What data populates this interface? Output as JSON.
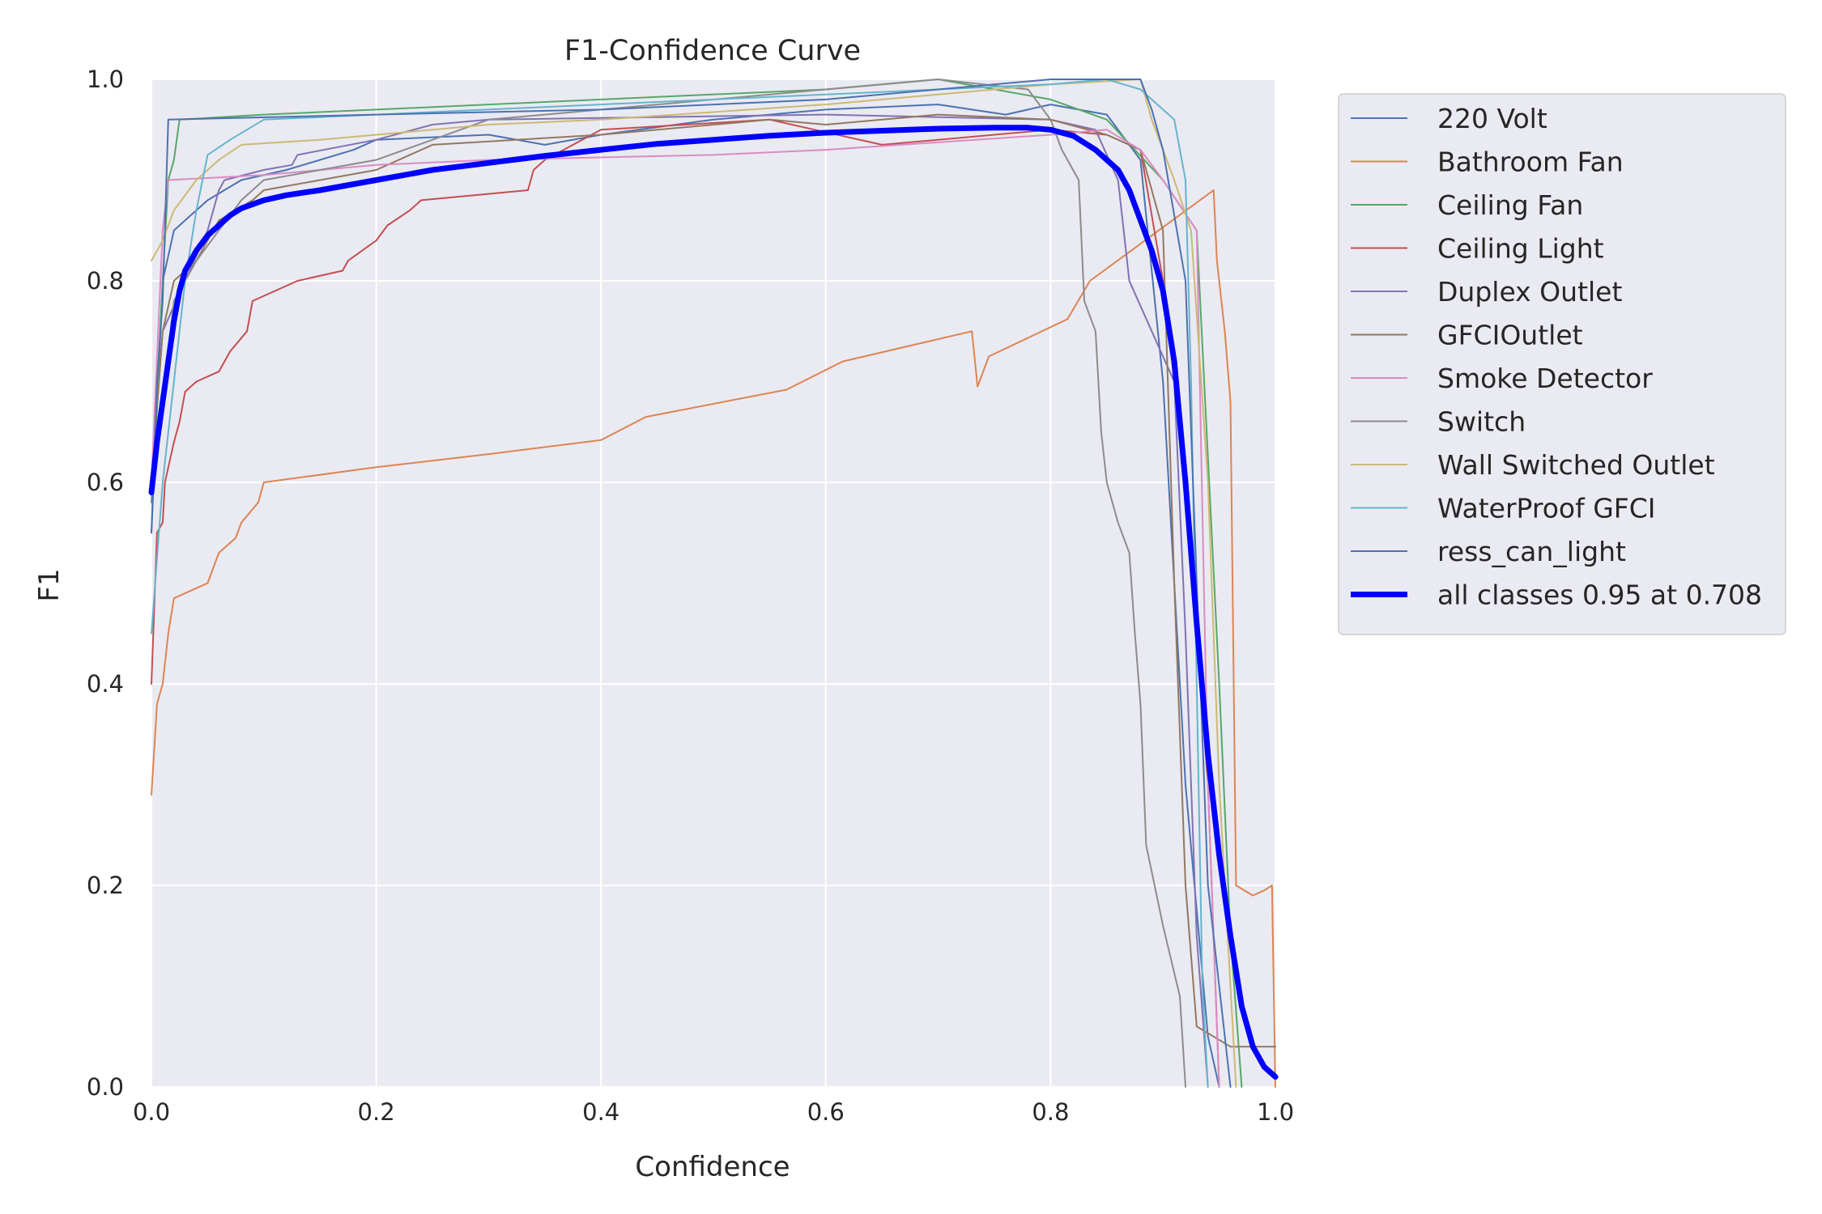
{
  "chart_data": {
    "type": "line",
    "title": "F1-Confidence Curve",
    "xlabel": "Confidence",
    "ylabel": "F1",
    "xlim": [
      0,
      1
    ],
    "ylim": [
      0,
      1
    ],
    "xticks": [
      "0.0",
      "0.2",
      "0.4",
      "0.6",
      "0.8",
      "1.0"
    ],
    "yticks": [
      "0.0",
      "0.2",
      "0.4",
      "0.6",
      "0.8",
      "1.0"
    ],
    "grid": true,
    "legend_position": "outside right, top",
    "series": [
      {
        "name": "220 Volt",
        "color": "#4c72b0",
        "width": 2,
        "points": [
          [
            0,
            0.55
          ],
          [
            0.01,
            0.8
          ],
          [
            0.02,
            0.85
          ],
          [
            0.03,
            0.86
          ],
          [
            0.05,
            0.88
          ],
          [
            0.08,
            0.9
          ],
          [
            0.12,
            0.91
          ],
          [
            0.18,
            0.93
          ],
          [
            0.2,
            0.94
          ],
          [
            0.3,
            0.945
          ],
          [
            0.35,
            0.935
          ],
          [
            0.4,
            0.945
          ],
          [
            0.5,
            0.96
          ],
          [
            0.6,
            0.97
          ],
          [
            0.7,
            0.975
          ],
          [
            0.76,
            0.965
          ],
          [
            0.8,
            0.975
          ],
          [
            0.85,
            0.965
          ],
          [
            0.88,
            0.92
          ],
          [
            0.9,
            0.7
          ],
          [
            0.92,
            0.3
          ],
          [
            0.94,
            0.05
          ],
          [
            0.95,
            0
          ]
        ]
      },
      {
        "name": "Bathroom Fan",
        "color": "#dd8452",
        "width": 2,
        "points": [
          [
            0,
            0.29
          ],
          [
            0.005,
            0.38
          ],
          [
            0.01,
            0.4
          ],
          [
            0.015,
            0.45
          ],
          [
            0.02,
            0.485
          ],
          [
            0.05,
            0.5
          ],
          [
            0.06,
            0.53
          ],
          [
            0.075,
            0.545
          ],
          [
            0.08,
            0.56
          ],
          [
            0.095,
            0.58
          ],
          [
            0.1,
            0.6
          ],
          [
            0.2,
            0.615
          ],
          [
            0.3,
            0.628
          ],
          [
            0.4,
            0.642
          ],
          [
            0.44,
            0.665
          ],
          [
            0.565,
            0.692
          ],
          [
            0.615,
            0.72
          ],
          [
            0.73,
            0.75
          ],
          [
            0.735,
            0.695
          ],
          [
            0.745,
            0.725
          ],
          [
            0.815,
            0.762
          ],
          [
            0.835,
            0.8
          ],
          [
            0.945,
            0.89
          ],
          [
            0.948,
            0.82
          ],
          [
            0.955,
            0.75
          ],
          [
            0.96,
            0.68
          ],
          [
            0.965,
            0.2
          ],
          [
            0.98,
            0.19
          ],
          [
            0.99,
            0.195
          ],
          [
            0.997,
            0.2
          ],
          [
            1.0,
            0
          ]
        ]
      },
      {
        "name": "Ceiling Fan",
        "color": "#55a868",
        "width": 2,
        "points": [
          [
            0,
            0.58
          ],
          [
            0.01,
            0.8
          ],
          [
            0.015,
            0.9
          ],
          [
            0.02,
            0.92
          ],
          [
            0.025,
            0.96
          ],
          [
            0.1,
            0.965
          ],
          [
            0.2,
            0.97
          ],
          [
            0.4,
            0.98
          ],
          [
            0.6,
            0.99
          ],
          [
            0.7,
            1.0
          ],
          [
            0.8,
            0.98
          ],
          [
            0.85,
            0.96
          ],
          [
            0.9,
            0.9
          ],
          [
            0.93,
            0.85
          ],
          [
            0.95,
            0.4
          ],
          [
            0.96,
            0.15
          ],
          [
            0.97,
            0
          ]
        ]
      },
      {
        "name": "Ceiling Light",
        "color": "#c44e52",
        "width": 2,
        "points": [
          [
            0,
            0.4
          ],
          [
            0.005,
            0.55
          ],
          [
            0.01,
            0.56
          ],
          [
            0.012,
            0.6
          ],
          [
            0.02,
            0.64
          ],
          [
            0.025,
            0.66
          ],
          [
            0.03,
            0.69
          ],
          [
            0.04,
            0.7
          ],
          [
            0.06,
            0.71
          ],
          [
            0.07,
            0.73
          ],
          [
            0.085,
            0.75
          ],
          [
            0.09,
            0.78
          ],
          [
            0.13,
            0.8
          ],
          [
            0.17,
            0.81
          ],
          [
            0.175,
            0.82
          ],
          [
            0.2,
            0.84
          ],
          [
            0.21,
            0.855
          ],
          [
            0.23,
            0.87
          ],
          [
            0.24,
            0.88
          ],
          [
            0.335,
            0.89
          ],
          [
            0.34,
            0.91
          ],
          [
            0.35,
            0.92
          ],
          [
            0.4,
            0.95
          ],
          [
            0.55,
            0.96
          ],
          [
            0.65,
            0.935
          ],
          [
            0.8,
            0.95
          ],
          [
            0.85,
            0.945
          ],
          [
            0.88,
            0.93
          ],
          [
            0.9,
            0.8
          ],
          [
            0.92,
            0.6
          ],
          [
            0.94,
            0.3
          ],
          [
            0.95,
            0
          ]
        ]
      },
      {
        "name": "Duplex Outlet",
        "color": "#8172b3",
        "width": 2,
        "points": [
          [
            0,
            0.6
          ],
          [
            0.01,
            0.75
          ],
          [
            0.03,
            0.8
          ],
          [
            0.05,
            0.85
          ],
          [
            0.06,
            0.89
          ],
          [
            0.065,
            0.9
          ],
          [
            0.1,
            0.91
          ],
          [
            0.125,
            0.915
          ],
          [
            0.13,
            0.925
          ],
          [
            0.2,
            0.94
          ],
          [
            0.25,
            0.955
          ],
          [
            0.3,
            0.96
          ],
          [
            0.6,
            0.965
          ],
          [
            0.8,
            0.96
          ],
          [
            0.84,
            0.95
          ],
          [
            0.86,
            0.9
          ],
          [
            0.87,
            0.8
          ],
          [
            0.89,
            0.75
          ],
          [
            0.91,
            0.7
          ],
          [
            0.92,
            0.45
          ],
          [
            0.93,
            0.15
          ],
          [
            0.94,
            0
          ]
        ]
      },
      {
        "name": "GFCIOutlet",
        "color": "#937860",
        "width": 2,
        "points": [
          [
            0,
            0.6
          ],
          [
            0.01,
            0.75
          ],
          [
            0.02,
            0.8
          ],
          [
            0.04,
            0.82
          ],
          [
            0.06,
            0.86
          ],
          [
            0.09,
            0.88
          ],
          [
            0.1,
            0.89
          ],
          [
            0.15,
            0.9
          ],
          [
            0.2,
            0.91
          ],
          [
            0.25,
            0.935
          ],
          [
            0.4,
            0.945
          ],
          [
            0.55,
            0.96
          ],
          [
            0.6,
            0.955
          ],
          [
            0.7,
            0.965
          ],
          [
            0.8,
            0.96
          ],
          [
            0.85,
            0.945
          ],
          [
            0.88,
            0.93
          ],
          [
            0.9,
            0.85
          ],
          [
            0.91,
            0.5
          ],
          [
            0.92,
            0.2
          ],
          [
            0.93,
            0.06
          ],
          [
            0.96,
            0.04
          ],
          [
            1.0,
            0.04
          ]
        ]
      },
      {
        "name": "Smoke Detector",
        "color": "#da8bc3",
        "width": 2,
        "points": [
          [
            0,
            0.6
          ],
          [
            0.01,
            0.85
          ],
          [
            0.015,
            0.9
          ],
          [
            0.1,
            0.905
          ],
          [
            0.2,
            0.915
          ],
          [
            0.3,
            0.92
          ],
          [
            0.5,
            0.925
          ],
          [
            0.6,
            0.93
          ],
          [
            0.8,
            0.945
          ],
          [
            0.85,
            0.95
          ],
          [
            0.88,
            0.93
          ],
          [
            0.9,
            0.9
          ],
          [
            0.93,
            0.85
          ],
          [
            0.94,
            0.3
          ],
          [
            0.95,
            0
          ]
        ]
      },
      {
        "name": "Switch",
        "color": "#8c8c8c",
        "width": 2,
        "points": [
          [
            0,
            0.58
          ],
          [
            0.02,
            0.78
          ],
          [
            0.04,
            0.82
          ],
          [
            0.08,
            0.88
          ],
          [
            0.1,
            0.9
          ],
          [
            0.15,
            0.91
          ],
          [
            0.2,
            0.92
          ],
          [
            0.3,
            0.96
          ],
          [
            0.4,
            0.97
          ],
          [
            0.6,
            0.99
          ],
          [
            0.7,
            1.0
          ],
          [
            0.78,
            0.99
          ],
          [
            0.8,
            0.96
          ],
          [
            0.81,
            0.93
          ],
          [
            0.825,
            0.9
          ],
          [
            0.83,
            0.78
          ],
          [
            0.84,
            0.75
          ],
          [
            0.845,
            0.65
          ],
          [
            0.85,
            0.6
          ],
          [
            0.855,
            0.58
          ],
          [
            0.86,
            0.56
          ],
          [
            0.87,
            0.53
          ],
          [
            0.875,
            0.45
          ],
          [
            0.88,
            0.38
          ],
          [
            0.885,
            0.24
          ],
          [
            0.9,
            0.16
          ],
          [
            0.915,
            0.09
          ],
          [
            0.92,
            0
          ]
        ]
      },
      {
        "name": "Wall Switched Outlet",
        "color": "#ccb974",
        "width": 2,
        "points": [
          [
            0,
            0.82
          ],
          [
            0.01,
            0.84
          ],
          [
            0.02,
            0.87
          ],
          [
            0.04,
            0.9
          ],
          [
            0.06,
            0.92
          ],
          [
            0.08,
            0.935
          ],
          [
            0.15,
            0.94
          ],
          [
            0.2,
            0.945
          ],
          [
            0.3,
            0.955
          ],
          [
            0.4,
            0.96
          ],
          [
            0.6,
            0.975
          ],
          [
            0.7,
            0.985
          ],
          [
            0.8,
            0.995
          ],
          [
            0.88,
            1.0
          ],
          [
            0.89,
            0.96
          ],
          [
            0.91,
            0.9
          ],
          [
            0.925,
            0.85
          ],
          [
            0.94,
            0.6
          ],
          [
            0.95,
            0.3
          ],
          [
            0.96,
            0.1
          ],
          [
            0.965,
            0
          ]
        ]
      },
      {
        "name": "WaterProof GFCI",
        "color": "#64b5cd",
        "width": 2,
        "points": [
          [
            0,
            0.45
          ],
          [
            0.01,
            0.6
          ],
          [
            0.02,
            0.7
          ],
          [
            0.03,
            0.8
          ],
          [
            0.04,
            0.87
          ],
          [
            0.05,
            0.925
          ],
          [
            0.07,
            0.94
          ],
          [
            0.1,
            0.96
          ],
          [
            0.2,
            0.965
          ],
          [
            0.4,
            0.975
          ],
          [
            0.6,
            0.985
          ],
          [
            0.8,
            0.995
          ],
          [
            0.85,
            1.0
          ],
          [
            0.88,
            0.99
          ],
          [
            0.91,
            0.96
          ],
          [
            0.92,
            0.9
          ],
          [
            0.925,
            0.7
          ],
          [
            0.93,
            0.4
          ],
          [
            0.935,
            0.1
          ],
          [
            0.94,
            0
          ]
        ]
      },
      {
        "name": "ress_can_light",
        "color": "#4c72b0",
        "width": 2,
        "points": [
          [
            0,
            0.55
          ],
          [
            0.005,
            0.7
          ],
          [
            0.01,
            0.78
          ],
          [
            0.015,
            0.96
          ],
          [
            0.2,
            0.965
          ],
          [
            0.4,
            0.97
          ],
          [
            0.6,
            0.98
          ],
          [
            0.7,
            0.99
          ],
          [
            0.8,
            1.0
          ],
          [
            0.88,
            1.0
          ],
          [
            0.89,
            0.97
          ],
          [
            0.9,
            0.93
          ],
          [
            0.92,
            0.8
          ],
          [
            0.94,
            0.2
          ],
          [
            0.96,
            0
          ]
        ]
      },
      {
        "name": "all classes 0.95 at 0.708",
        "color": "#0000ff",
        "width": 7,
        "points": [
          [
            0,
            0.59
          ],
          [
            0.005,
            0.64
          ],
          [
            0.01,
            0.68
          ],
          [
            0.015,
            0.72
          ],
          [
            0.02,
            0.76
          ],
          [
            0.025,
            0.79
          ],
          [
            0.03,
            0.81
          ],
          [
            0.04,
            0.83
          ],
          [
            0.05,
            0.845
          ],
          [
            0.06,
            0.855
          ],
          [
            0.07,
            0.865
          ],
          [
            0.08,
            0.872
          ],
          [
            0.1,
            0.88
          ],
          [
            0.12,
            0.885
          ],
          [
            0.15,
            0.89
          ],
          [
            0.2,
            0.9
          ],
          [
            0.25,
            0.91
          ],
          [
            0.3,
            0.917
          ],
          [
            0.35,
            0.924
          ],
          [
            0.4,
            0.93
          ],
          [
            0.45,
            0.936
          ],
          [
            0.5,
            0.94
          ],
          [
            0.55,
            0.944
          ],
          [
            0.6,
            0.947
          ],
          [
            0.65,
            0.949
          ],
          [
            0.7,
            0.951
          ],
          [
            0.75,
            0.952
          ],
          [
            0.78,
            0.952
          ],
          [
            0.8,
            0.95
          ],
          [
            0.82,
            0.944
          ],
          [
            0.84,
            0.93
          ],
          [
            0.86,
            0.91
          ],
          [
            0.87,
            0.89
          ],
          [
            0.88,
            0.86
          ],
          [
            0.89,
            0.83
          ],
          [
            0.9,
            0.79
          ],
          [
            0.91,
            0.72
          ],
          [
            0.92,
            0.6
          ],
          [
            0.93,
            0.46
          ],
          [
            0.94,
            0.33
          ],
          [
            0.95,
            0.23
          ],
          [
            0.96,
            0.15
          ],
          [
            0.97,
            0.08
          ],
          [
            0.98,
            0.04
          ],
          [
            0.99,
            0.02
          ],
          [
            1.0,
            0.01
          ]
        ]
      }
    ]
  }
}
